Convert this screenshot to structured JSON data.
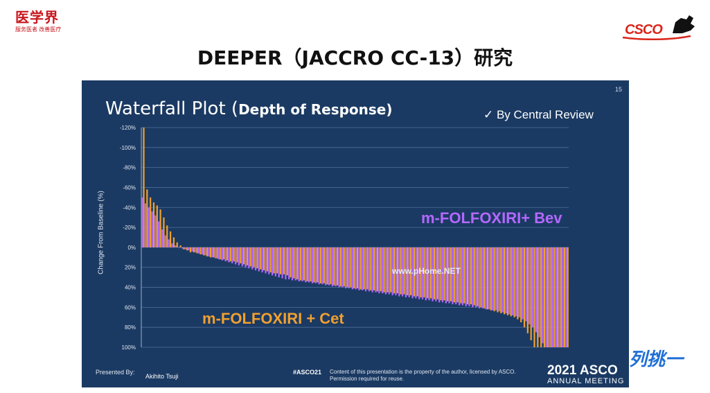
{
  "header": {
    "logo_left": "医学界",
    "logo_left_sub": "服务医者 改善医疗",
    "logo_right": "CSCO",
    "title": "DEEPER（JACCRO CC-13）研究"
  },
  "slide": {
    "number": "15",
    "title_part1": "Waterfall Plot (",
    "title_part2": "Depth of Response)",
    "review_note": "✓ By Central Review",
    "ylabel": "Change From Baseline (%)",
    "watermark": "www.pHome.NET",
    "label_bev": "m-FOLFOXIRI+ Bev",
    "label_cet": "m-FOLFOXIRI + Cet",
    "presented_by": "Presented By:",
    "presenter": "Akihito Tsuji",
    "hashtag": "#ASCO21",
    "notice": "Content of this presentation is the property of the author, licensed by ASCO. Permission required for reuse.",
    "footer_year": "2021 ASCO",
    "footer_meeting": "ANNUAL MEETING"
  },
  "corner_mark": "列挑一",
  "colors": {
    "slide_bg": "#1b3a63",
    "bev": "#b468ff",
    "cet": "#f0a030",
    "gridline": "#4c6f9a"
  },
  "chart_data": {
    "type": "bar",
    "ylabel": "Change From Baseline (%)",
    "yticks": [
      "-120%",
      "-100%",
      "-80%",
      "-60%",
      "-40%",
      "-20%",
      "0%",
      "20%",
      "40%",
      "60%",
      "80%",
      "100%"
    ],
    "ylim": [
      -120,
      100
    ],
    "series": [
      {
        "name": "m-FOLFOXIRI + Cet",
        "color": "#f0a030",
        "values": [
          -120,
          -58,
          -50,
          -45,
          -42,
          -38,
          -30,
          -22,
          -16,
          -10,
          -5,
          -2,
          2,
          3,
          5,
          5,
          6,
          7,
          8,
          9,
          10,
          10,
          11,
          12,
          12,
          13,
          14,
          14,
          15,
          16,
          17,
          18,
          19,
          20,
          21,
          22,
          23,
          24,
          25,
          26,
          26,
          27,
          27,
          28,
          30,
          31,
          32,
          33,
          33,
          34,
          34,
          35,
          35,
          36,
          36,
          37,
          37,
          38,
          38,
          39,
          39,
          40,
          40,
          41,
          41,
          42,
          42,
          42,
          43,
          43,
          44,
          44,
          45,
          45,
          45,
          46,
          46,
          47,
          47,
          48,
          48,
          49,
          49,
          50,
          50,
          51,
          51,
          52,
          52,
          53,
          53,
          54,
          54,
          55,
          55,
          56,
          56,
          57,
          57,
          58,
          59,
          60,
          61,
          62,
          63,
          64,
          65,
          66,
          67,
          68,
          69,
          70,
          72,
          75,
          80,
          86,
          93,
          100,
          100,
          100,
          100,
          100,
          100,
          100,
          100,
          100,
          100,
          100
        ]
      },
      {
        "name": "m-FOLFOXIRI+ Bev",
        "color": "#b468ff",
        "values": [
          -50,
          -44,
          -40,
          -36,
          -32,
          -26,
          -18,
          -12,
          -8,
          -4,
          -2,
          0,
          1,
          2,
          3,
          4,
          5,
          6,
          7,
          8,
          9,
          10,
          11,
          12,
          13,
          14,
          15,
          16,
          17,
          18,
          19,
          20,
          21,
          22,
          23,
          24,
          25,
          26,
          27,
          28,
          29,
          30,
          31,
          32,
          32,
          33,
          33,
          34,
          34,
          35,
          35,
          36,
          36,
          37,
          37,
          38,
          38,
          39,
          39,
          40,
          40,
          41,
          41,
          42,
          42,
          43,
          43,
          44,
          44,
          45,
          45,
          46,
          46,
          47,
          47,
          48,
          48,
          49,
          49,
          50,
          50,
          51,
          51,
          52,
          52,
          53,
          53,
          54,
          54,
          55,
          55,
          56,
          56,
          57,
          57,
          58,
          58,
          59,
          59,
          60,
          60,
          61,
          61,
          62,
          62,
          63,
          63,
          64,
          65,
          66,
          67,
          68,
          69,
          70,
          72,
          74,
          77,
          80,
          85,
          90,
          96,
          100,
          100,
          100,
          100,
          100,
          100,
          100
        ]
      }
    ]
  }
}
